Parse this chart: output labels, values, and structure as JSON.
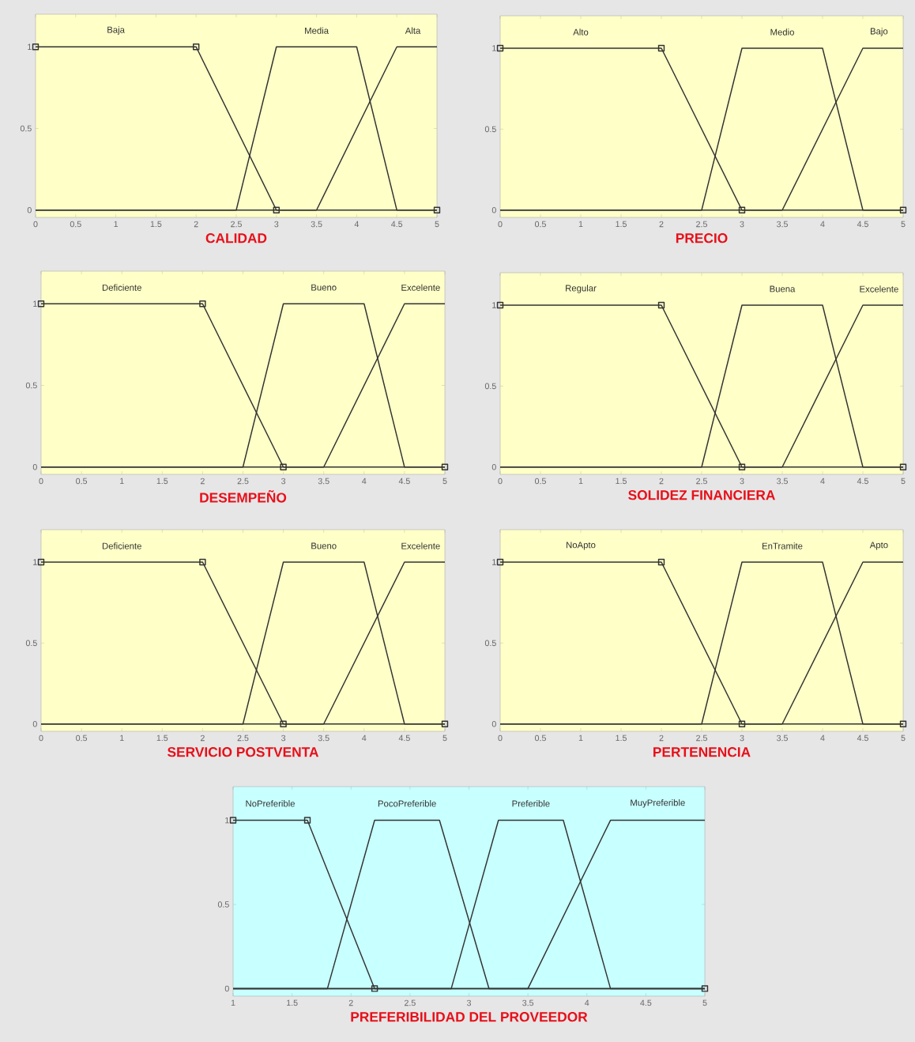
{
  "chart_data": [
    {
      "type": "line",
      "xlabel": "CALIDAD",
      "xlim": [
        0,
        5
      ],
      "ylim": [
        -0.045,
        1.2
      ],
      "xticks": [
        0,
        0.5,
        1,
        1.5,
        2,
        2.5,
        3,
        3.5,
        4,
        4.5,
        5
      ],
      "yticks": [
        0,
        0.5,
        1
      ],
      "series": [
        {
          "name": "Baja",
          "color": "#333333",
          "marker": "square",
          "x": [
            0,
            2,
            3,
            5
          ],
          "values": [
            1,
            1,
            0,
            0
          ]
        },
        {
          "name": "Media",
          "color": "#333333",
          "x": [
            0,
            2.5,
            3,
            4,
            4.5,
            5
          ],
          "values": [
            0,
            0,
            1,
            1,
            0,
            0
          ]
        },
        {
          "name": "Alta",
          "color": "#333333",
          "x": [
            0,
            3.5,
            4.5,
            5
          ],
          "values": [
            0,
            0,
            1,
            1
          ]
        }
      ]
    },
    {
      "type": "line",
      "xlabel": "PRECIO",
      "xlim": [
        0,
        5
      ],
      "ylim": [
        -0.045,
        1.2
      ],
      "xticks": [
        0,
        0.5,
        1,
        1.5,
        2,
        2.5,
        3,
        3.5,
        4,
        4.5,
        5
      ],
      "yticks": [
        0,
        0.5,
        1
      ],
      "series": [
        {
          "name": "Alto",
          "color": "#333333",
          "marker": "square",
          "x": [
            0,
            2,
            3,
            5
          ],
          "values": [
            1,
            1,
            0,
            0
          ]
        },
        {
          "name": "Medio",
          "color": "#333333",
          "x": [
            0,
            2.5,
            3,
            4,
            4.5,
            5
          ],
          "values": [
            0,
            0,
            1,
            1,
            0,
            0
          ]
        },
        {
          "name": "Bajo",
          "color": "#333333",
          "x": [
            0,
            3.5,
            4.5,
            5
          ],
          "values": [
            0,
            0,
            1,
            1
          ]
        }
      ]
    },
    {
      "type": "line",
      "xlabel": "DESEMPEÑO",
      "xlim": [
        0,
        5
      ],
      "ylim": [
        -0.045,
        1.2
      ],
      "xticks": [
        0,
        0.5,
        1,
        1.5,
        2,
        2.5,
        3,
        3.5,
        4,
        4.5,
        5
      ],
      "yticks": [
        0,
        0.5,
        1
      ],
      "series": [
        {
          "name": "Deficiente",
          "color": "#333333",
          "marker": "square",
          "x": [
            0,
            2,
            3,
            5
          ],
          "values": [
            1,
            1,
            0,
            0
          ]
        },
        {
          "name": "Bueno",
          "color": "#333333",
          "x": [
            0,
            2.5,
            3,
            4,
            4.5,
            5
          ],
          "values": [
            0,
            0,
            1,
            1,
            0,
            0
          ]
        },
        {
          "name": "Excelente",
          "color": "#333333",
          "x": [
            0,
            3.5,
            4.5,
            5
          ],
          "values": [
            0,
            0,
            1,
            1
          ]
        }
      ]
    },
    {
      "type": "line",
      "xlabel": "SOLIDEZ FINANCIERA",
      "xlim": [
        0,
        5
      ],
      "ylim": [
        -0.045,
        1.2
      ],
      "xticks": [
        0,
        0.5,
        1,
        1.5,
        2,
        2.5,
        3,
        3.5,
        4,
        4.5,
        5
      ],
      "yticks": [
        0,
        0.5,
        1
      ],
      "series": [
        {
          "name": "Regular",
          "color": "#333333",
          "marker": "square",
          "x": [
            0,
            2,
            3,
            5
          ],
          "values": [
            1,
            1,
            0,
            0
          ]
        },
        {
          "name": "Buena",
          "color": "#333333",
          "x": [
            0,
            2.5,
            3,
            4,
            4.5,
            5
          ],
          "values": [
            0,
            0,
            1,
            1,
            0,
            0
          ]
        },
        {
          "name": "Excelente",
          "color": "#333333",
          "x": [
            0,
            3.5,
            4.5,
            5
          ],
          "values": [
            0,
            0,
            1,
            1
          ]
        }
      ]
    },
    {
      "type": "line",
      "xlabel": "SERVICIO POSTVENTA",
      "xlim": [
        0,
        5
      ],
      "ylim": [
        -0.045,
        1.2
      ],
      "xticks": [
        0,
        0.5,
        1,
        1.5,
        2,
        2.5,
        3,
        3.5,
        4,
        4.5,
        5
      ],
      "yticks": [
        0,
        0.5,
        1
      ],
      "series": [
        {
          "name": "Deficiente",
          "color": "#333333",
          "marker": "square",
          "x": [
            0,
            2,
            3,
            5
          ],
          "values": [
            1,
            1,
            0,
            0
          ]
        },
        {
          "name": "Bueno",
          "color": "#333333",
          "x": [
            0,
            2.5,
            3,
            4,
            4.5,
            5
          ],
          "values": [
            0,
            0,
            1,
            1,
            0,
            0
          ]
        },
        {
          "name": "Excelente",
          "color": "#333333",
          "x": [
            0,
            3.5,
            4.5,
            5
          ],
          "values": [
            0,
            0,
            1,
            1
          ]
        }
      ]
    },
    {
      "type": "line",
      "xlabel": "PERTENENCIA",
      "xlim": [
        0,
        5
      ],
      "ylim": [
        -0.045,
        1.2
      ],
      "xticks": [
        0,
        0.5,
        1,
        1.5,
        2,
        2.5,
        3,
        3.5,
        4,
        4.5,
        5
      ],
      "yticks": [
        0,
        0.5,
        1
      ],
      "series": [
        {
          "name": "NoApto",
          "color": "#333333",
          "marker": "square",
          "x": [
            0,
            2,
            3,
            5
          ],
          "values": [
            1,
            1,
            0,
            0
          ]
        },
        {
          "name": "EnTramite",
          "color": "#333333",
          "x": [
            0,
            2.5,
            3,
            4,
            4.5,
            5
          ],
          "values": [
            0,
            0,
            1,
            1,
            0,
            0
          ]
        },
        {
          "name": "Apto",
          "color": "#333333",
          "x": [
            0,
            3.5,
            4.5,
            5
          ],
          "values": [
            0,
            0,
            1,
            1
          ]
        }
      ]
    },
    {
      "type": "line",
      "xlabel": "PREFERIBILIDAD DEL PROVEEDOR",
      "xlim": [
        1,
        5
      ],
      "ylim": [
        -0.045,
        1.2
      ],
      "xticks": [
        1,
        1.5,
        2,
        2.5,
        3,
        3.5,
        4,
        4.5,
        5
      ],
      "yticks": [
        0,
        0.5,
        1
      ],
      "series": [
        {
          "name": "NoPreferible",
          "color": "#333333",
          "marker": "square",
          "x": [
            1,
            1.63,
            2.2,
            5
          ],
          "values": [
            1,
            1,
            0,
            0
          ]
        },
        {
          "name": "PocoPreferible",
          "color": "#333333",
          "x": [
            1,
            1.8,
            2.2,
            2.75,
            3.17,
            5
          ],
          "values": [
            0,
            0,
            1,
            1,
            0,
            0
          ]
        },
        {
          "name": "Preferible",
          "color": "#333333",
          "x": [
            1,
            2.85,
            3.25,
            3.8,
            4.2,
            5
          ],
          "values": [
            0,
            0,
            1,
            1,
            0,
            0
          ]
        },
        {
          "name": "MuyPreferible",
          "color": "#333333",
          "x": [
            1,
            3.5,
            4.2,
            5
          ],
          "values": [
            0,
            0,
            1,
            1
          ]
        }
      ]
    }
  ]
}
